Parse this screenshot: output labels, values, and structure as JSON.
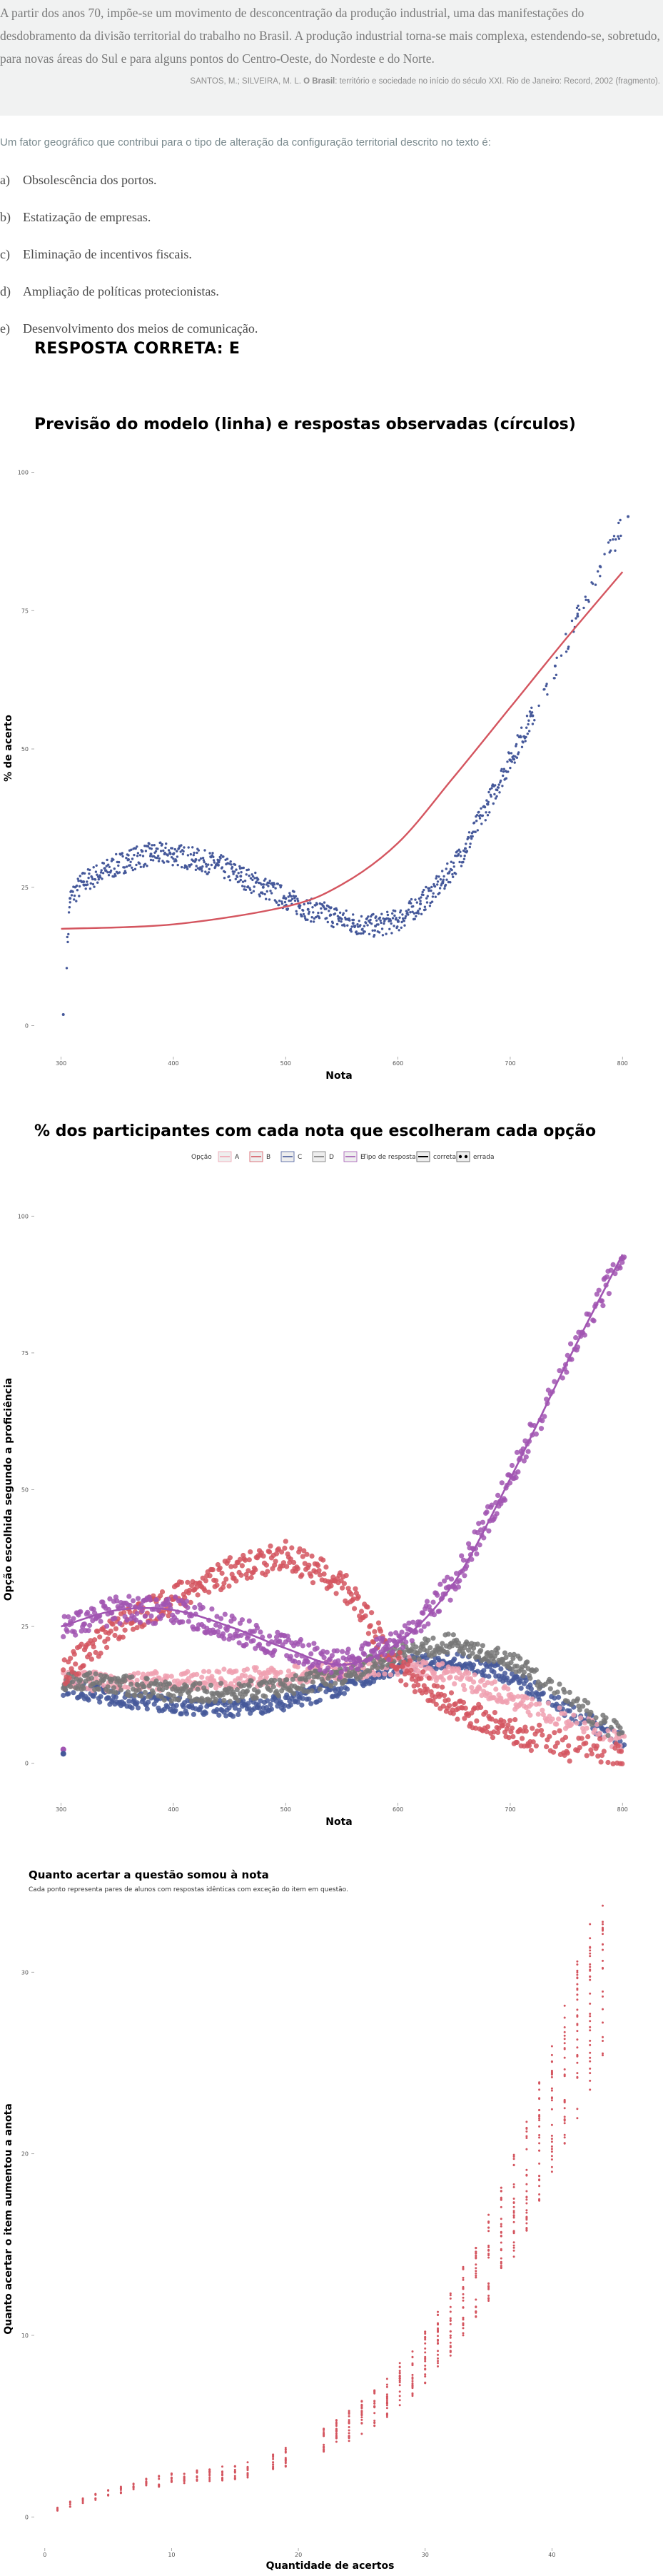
{
  "quote": {
    "text": "A partir dos anos 70, impõe-se um movimento de desconcentração da produção industrial, uma das manifestações do desdobramento da divisão territorial do trabalho no Brasil. A produção industrial torna-se mais complexa, estendendo-se, sobretudo, para novas áreas do Sul e para alguns pontos do Centro-Oeste, do Nordeste e do Norte.",
    "source_prefix": "SANTOS, M.; SILVEIRA, M. L. ",
    "source_title": "O Brasil",
    "source_suffix": ": território e sociedade no início do século XXI. Rio de Janeiro: Record, 2002 (fragmento)."
  },
  "question": "Um fator geográfico que contribui para o tipo de alteração da configuração territorial descrito no texto é:",
  "alternatives": [
    {
      "letter": "a)",
      "text": "Obsolescência dos portos."
    },
    {
      "letter": "b)",
      "text": "Estatização de empresas."
    },
    {
      "letter": "c)",
      "text": "Eliminação de incentivos fiscais."
    },
    {
      "letter": "d)",
      "text": "Ampliação de políticas protecionistas."
    },
    {
      "letter": "e)",
      "text": "Desenvolvimento dos meios de comunicação."
    }
  ],
  "answer_label": "RESPOSTA CORRETA: E",
  "colors": {
    "A": "#f0a0b0",
    "B": "#d4555f",
    "C": "#45589a",
    "D": "#777777",
    "E": "#a155b2",
    "model_line": "#d4555f",
    "points": "#45589a",
    "gain_points": "#d4555f"
  },
  "chart_data": [
    {
      "type": "line",
      "title": "Previsão do modelo (linha) e respostas observadas (círculos)",
      "xlabel": "Nota",
      "ylabel": "% de acerto",
      "xticks": [
        300,
        400,
        500,
        600,
        700,
        800
      ],
      "yticks": [
        0,
        25,
        50,
        75,
        100
      ],
      "xlim": [
        285,
        810
      ],
      "ylim": [
        -2,
        102
      ],
      "grid": false,
      "model_line": {
        "x": [
          300,
          400,
          500,
          550,
          600,
          650,
          700,
          750,
          800
        ],
        "y": [
          17.5,
          18.3,
          21.5,
          25.5,
          33,
          45,
          57.5,
          70,
          82
        ]
      },
      "observed_points": [
        {
          "x": 302,
          "y": 2
        },
        {
          "x": 308,
          "y": 23
        },
        {
          "x": 320,
          "y": 26
        },
        {
          "x": 340,
          "y": 28
        },
        {
          "x": 360,
          "y": 30
        },
        {
          "x": 380,
          "y": 31
        },
        {
          "x": 400,
          "y": 31
        },
        {
          "x": 420,
          "y": 30
        },
        {
          "x": 440,
          "y": 29
        },
        {
          "x": 460,
          "y": 27
        },
        {
          "x": 480,
          "y": 25
        },
        {
          "x": 500,
          "y": 23
        },
        {
          "x": 520,
          "y": 21
        },
        {
          "x": 540,
          "y": 20
        },
        {
          "x": 560,
          "y": 18.5
        },
        {
          "x": 580,
          "y": 18
        },
        {
          "x": 600,
          "y": 19
        },
        {
          "x": 620,
          "y": 22
        },
        {
          "x": 640,
          "y": 26
        },
        {
          "x": 660,
          "y": 32
        },
        {
          "x": 680,
          "y": 40
        },
        {
          "x": 700,
          "y": 48
        },
        {
          "x": 720,
          "y": 56
        },
        {
          "x": 740,
          "y": 65
        },
        {
          "x": 760,
          "y": 74
        },
        {
          "x": 780,
          "y": 83
        },
        {
          "x": 805,
          "y": 92
        }
      ]
    },
    {
      "type": "line",
      "title": "% dos participantes com cada nota que escolheram cada opção",
      "xlabel": "Nota",
      "ylabel": "Opção escolhida segundo a proficiência",
      "legend": {
        "placement": "top",
        "option_title": "Opção",
        "options": [
          "A",
          "B",
          "C",
          "D",
          "E"
        ],
        "type_title": "Tipo de resposta",
        "types": [
          "correta",
          "errada"
        ]
      },
      "xticks": [
        300,
        400,
        500,
        600,
        700,
        800
      ],
      "yticks": [
        0,
        25,
        50,
        75,
        100
      ],
      "xlim": [
        285,
        810
      ],
      "ylim": [
        -2,
        102
      ],
      "grid": false,
      "x": [
        300,
        350,
        400,
        450,
        500,
        550,
        600,
        650,
        700,
        750,
        800
      ],
      "series": [
        {
          "name": "A",
          "values": [
            15,
            15,
            15,
            15.5,
            16,
            17,
            18,
            16,
            12,
            8,
            4
          ]
        },
        {
          "name": "B",
          "values": [
            16,
            25,
            30,
            35,
            38,
            33,
            18,
            10,
            6,
            3,
            2
          ]
        },
        {
          "name": "C",
          "values": [
            14,
            12,
            10.5,
            10,
            11,
            14,
            18,
            19,
            16,
            10,
            4
          ]
        },
        {
          "name": "D",
          "values": [
            15,
            14.5,
            13,
            13,
            14,
            16,
            20,
            22,
            19,
            12,
            5
          ]
        },
        {
          "name": "E",
          "values": [
            25,
            28,
            28,
            25,
            21,
            18,
            22,
            33,
            52,
            73,
            93
          ]
        }
      ],
      "outlier_points": [
        {
          "x": 302,
          "y": 2
        }
      ]
    },
    {
      "type": "scatter",
      "title": "Quanto acertar a questão somou à nota",
      "subtitle": "Cada ponto representa pares de alunos com respostas idênticas com exceção do item em questão.",
      "xlabel": "Quantidade de acertos",
      "ylabel": "Quanto acertar o item aumentou a anota",
      "xticks": [
        0,
        10,
        20,
        30,
        40
      ],
      "yticks": [
        0,
        10,
        20,
        30
      ],
      "xlim": [
        -1,
        46
      ],
      "ylim": [
        -0.5,
        33
      ],
      "grid": false,
      "points": [
        {
          "x": 1,
          "y": 0.5
        },
        {
          "x": 2,
          "y": 0.7
        },
        {
          "x": 3,
          "y": 0.9
        },
        {
          "x": 4,
          "y": 1.1
        },
        {
          "x": 5,
          "y": 1.3
        },
        {
          "x": 6,
          "y": 1.5
        },
        {
          "x": 7,
          "y": 1.7
        },
        {
          "x": 8,
          "y": 1.9
        },
        {
          "x": 9,
          "y": 2.0
        },
        {
          "x": 10,
          "y": 2.1
        },
        {
          "x": 11,
          "y": 2.1
        },
        {
          "x": 12,
          "y": 2.2
        },
        {
          "x": 13,
          "y": 2.3
        },
        {
          "x": 14,
          "y": 2.4
        },
        {
          "x": 15,
          "y": 2.5
        },
        {
          "x": 16,
          "y": 2.6
        },
        {
          "x": 18,
          "y": 3.0
        },
        {
          "x": 19,
          "y": 3.3
        },
        {
          "x": 22,
          "y": 4.3
        },
        {
          "x": 23,
          "y": 4.6
        },
        {
          "x": 24,
          "y": 5.0
        },
        {
          "x": 25,
          "y": 5.5
        },
        {
          "x": 26,
          "y": 6.0
        },
        {
          "x": 27,
          "y": 6.6
        },
        {
          "x": 28,
          "y": 7.3
        },
        {
          "x": 29,
          "y": 8.0
        },
        {
          "x": 30,
          "y": 8.8
        },
        {
          "x": 31,
          "y": 9.7
        },
        {
          "x": 32,
          "y": 10.7
        },
        {
          "x": 33,
          "y": 11.8
        },
        {
          "x": 34,
          "y": 13.0
        },
        {
          "x": 35,
          "y": 14.3
        },
        {
          "x": 36,
          "y": 15.7
        },
        {
          "x": 37,
          "y": 17.2
        },
        {
          "x": 38,
          "y": 18.8
        },
        {
          "x": 39,
          "y": 20.5
        },
        {
          "x": 40,
          "y": 22.3
        },
        {
          "x": 41,
          "y": 24.2
        },
        {
          "x": 42,
          "y": 26.2
        },
        {
          "x": 43,
          "y": 28.3
        },
        {
          "x": 44,
          "y": 30.5
        }
      ]
    }
  ]
}
